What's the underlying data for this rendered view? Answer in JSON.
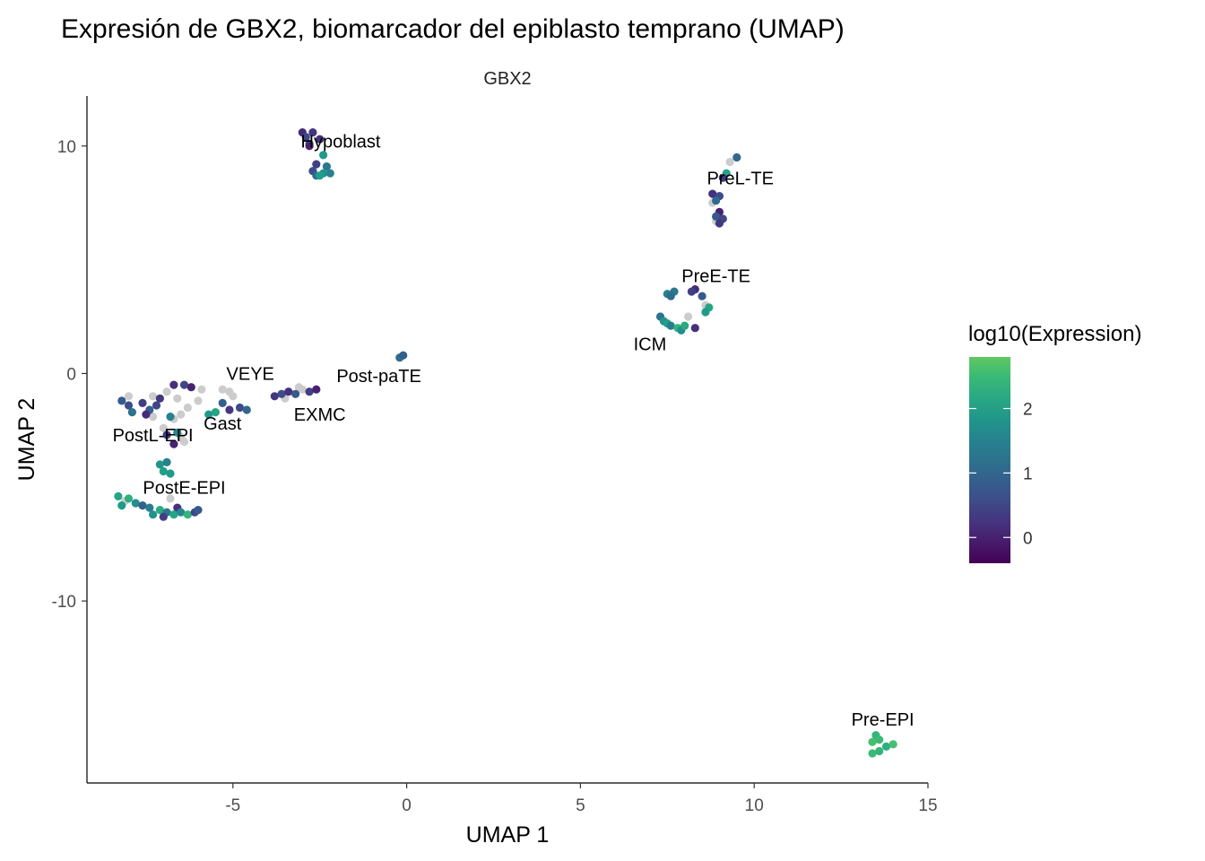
{
  "chart_data": {
    "type": "scatter",
    "title": "Expresión de GBX2, biomarcador del epiblasto temprano (UMAP)",
    "facet_label": "GBX2",
    "xlabel": "UMAP 1",
    "ylabel": "UMAP 2",
    "xlim": [
      -9.2,
      15.0
    ],
    "ylim": [
      -18.0,
      12.2
    ],
    "x_ticks": [
      -5,
      0,
      5,
      10,
      15
    ],
    "y_ticks": [
      -10,
      0,
      10
    ],
    "y_tick_labels": [
      "-10",
      "0",
      "10"
    ],
    "grid": false,
    "na_color": "#cccccc",
    "legend": {
      "title": "log10(Expression)",
      "position": "right",
      "min": -0.4,
      "max": 2.8,
      "ticks": [
        0,
        1,
        2
      ],
      "colormap": "viridis"
    },
    "clusters": [
      {
        "label": "Hypoblast",
        "x": -2.8,
        "y": 10.2,
        "expr_mean": 0.9,
        "expr_spread": 0.8
      },
      {
        "label": "PreL-TE",
        "x": 9.1,
        "y": 8.1,
        "expr_mean": 0.6,
        "expr_spread": 0.6
      },
      {
        "label": "PreE-TE",
        "x": 8.0,
        "y": 3.3,
        "expr_mean": 1.1,
        "expr_spread": 0.8
      },
      {
        "label": "ICM",
        "x": 7.5,
        "y": 2.1,
        "expr_mean": 1.8,
        "expr_spread": 0.5
      },
      {
        "label": "Post-paTE",
        "x": -0.1,
        "y": 0.8,
        "expr_mean": 1.0,
        "expr_spread": 0.2
      },
      {
        "label": "VEYE",
        "x": -5.2,
        "y": -1.1,
        "expr_mean": 0.6,
        "expr_spread": 0.5
      },
      {
        "label": "EXMC",
        "x": -3.2,
        "y": -0.8,
        "expr_mean": 0.4,
        "expr_spread": 0.4
      },
      {
        "label": "Gast",
        "x": -6.0,
        "y": -1.6,
        "expr_mean": 1.3,
        "expr_spread": 0.9
      },
      {
        "label": "PostL-EPI",
        "x": -7.2,
        "y": -1.6,
        "expr_mean": 0.8,
        "expr_spread": 0.9
      },
      {
        "label": "PostE-EPI",
        "x": -7.0,
        "y": -5.7,
        "expr_mean": 1.8,
        "expr_spread": 0.7
      },
      {
        "label": "Pre-EPI",
        "x": 13.6,
        "y": -16.4,
        "expr_mean": 2.5,
        "expr_spread": 0.2
      }
    ],
    "label_positions": [
      {
        "label": "Hypoblast",
        "x": -1.9,
        "y": 10.2
      },
      {
        "label": "PreL-TE",
        "x": 9.6,
        "y": 8.6
      },
      {
        "label": "PreE-TE",
        "x": 8.9,
        "y": 4.3
      },
      {
        "label": "ICM",
        "x": 7.0,
        "y": 1.3
      },
      {
        "label": "Post-paTE",
        "x": -0.8,
        "y": -0.1
      },
      {
        "label": "VEYE",
        "x": -4.5,
        "y": -0.0
      },
      {
        "label": "EXMC",
        "x": -2.5,
        "y": -1.8
      },
      {
        "label": "Gast",
        "x": -5.3,
        "y": -2.2
      },
      {
        "label": "PostL-EPI",
        "x": -7.3,
        "y": -2.7
      },
      {
        "label": "PostE-EPI",
        "x": -6.4,
        "y": -5.0
      },
      {
        "label": "Pre-EPI",
        "x": 13.7,
        "y": -15.2
      }
    ],
    "points": [
      {
        "x": -3.0,
        "y": 10.6,
        "expr": 0.1
      },
      {
        "x": -2.7,
        "y": 10.6,
        "expr": 0.3
      },
      {
        "x": -2.9,
        "y": 10.4,
        "expr": 0.5
      },
      {
        "x": -2.5,
        "y": 10.3,
        "expr": 0.2
      },
      {
        "x": -2.8,
        "y": 10.1,
        "expr": 0.8
      },
      {
        "x": -2.4,
        "y": 9.6,
        "expr": 1.9
      },
      {
        "x": -2.6,
        "y": 9.2,
        "expr": 0.4
      },
      {
        "x": -2.3,
        "y": 9.1,
        "expr": 1.3
      },
      {
        "x": -2.7,
        "y": 8.9,
        "expr": 0.6
      },
      {
        "x": -2.4,
        "y": 8.8,
        "expr": 1.8
      },
      {
        "x": -2.2,
        "y": 8.8,
        "expr": 1.5
      },
      {
        "x": -2.6,
        "y": 8.7,
        "expr": 1.1
      },
      {
        "x": -2.5,
        "y": 8.7,
        "expr": 2.0
      },
      {
        "x": -2.8,
        "y": 10.0,
        "expr": 0.0
      },
      {
        "x": 9.5,
        "y": 9.5,
        "expr": 1.0
      },
      {
        "x": 9.3,
        "y": 9.3,
        "expr": null
      },
      {
        "x": 9.2,
        "y": 8.8,
        "expr": 2.1
      },
      {
        "x": 9.1,
        "y": 8.6,
        "expr": 0.3
      },
      {
        "x": 8.8,
        "y": 7.9,
        "expr": 0.2
      },
      {
        "x": 9.0,
        "y": 7.8,
        "expr": 0.6
      },
      {
        "x": 8.9,
        "y": 7.6,
        "expr": 1.1
      },
      {
        "x": 8.8,
        "y": 7.5,
        "expr": null
      },
      {
        "x": 9.0,
        "y": 7.1,
        "expr": 0.0
      },
      {
        "x": 8.9,
        "y": 6.9,
        "expr": 0.8
      },
      {
        "x": 9.1,
        "y": 6.8,
        "expr": 0.5
      },
      {
        "x": 8.9,
        "y": 6.7,
        "expr": null
      },
      {
        "x": 9.0,
        "y": 6.6,
        "expr": 0.3
      },
      {
        "x": 8.3,
        "y": 3.7,
        "expr": 0.1
      },
      {
        "x": 8.2,
        "y": 3.6,
        "expr": 0.4
      },
      {
        "x": 7.7,
        "y": 3.6,
        "expr": 1.3
      },
      {
        "x": 7.5,
        "y": 3.5,
        "expr": 1.5
      },
      {
        "x": 8.5,
        "y": 3.4,
        "expr": 0.8
      },
      {
        "x": 7.6,
        "y": 3.4,
        "expr": 1.1
      },
      {
        "x": 8.6,
        "y": 3.0,
        "expr": null
      },
      {
        "x": 8.7,
        "y": 2.9,
        "expr": 2.1
      },
      {
        "x": 8.6,
        "y": 2.7,
        "expr": 1.9
      },
      {
        "x": 8.1,
        "y": 2.5,
        "expr": null
      },
      {
        "x": 7.3,
        "y": 2.5,
        "expr": 1.2
      },
      {
        "x": 7.4,
        "y": 2.3,
        "expr": 1.8
      },
      {
        "x": 7.5,
        "y": 2.2,
        "expr": 2.0
      },
      {
        "x": 7.6,
        "y": 2.1,
        "expr": 1.4
      },
      {
        "x": 7.8,
        "y": 2.0,
        "expr": 2.4
      },
      {
        "x": 7.9,
        "y": 1.9,
        "expr": 1.7
      },
      {
        "x": 8.0,
        "y": 2.1,
        "expr": 2.2
      },
      {
        "x": 8.3,
        "y": 2.0,
        "expr": 0.2
      },
      {
        "x": -0.2,
        "y": 0.7,
        "expr": 1.1
      },
      {
        "x": -0.1,
        "y": 0.8,
        "expr": 0.9
      },
      {
        "x": -5.3,
        "y": -0.7,
        "expr": null
      },
      {
        "x": -5.1,
        "y": -0.8,
        "expr": null
      },
      {
        "x": -5.0,
        "y": -1.0,
        "expr": null
      },
      {
        "x": -5.3,
        "y": -1.3,
        "expr": 0.9
      },
      {
        "x": -4.8,
        "y": -1.5,
        "expr": 0.6
      },
      {
        "x": -4.6,
        "y": -1.6,
        "expr": 1.0
      },
      {
        "x": -5.1,
        "y": -1.6,
        "expr": 0.3
      },
      {
        "x": -5.5,
        "y": -1.7,
        "expr": 2.1
      },
      {
        "x": -5.7,
        "y": -1.8,
        "expr": 1.9
      },
      {
        "x": -3.8,
        "y": -1.0,
        "expr": 0.3
      },
      {
        "x": -3.6,
        "y": -0.9,
        "expr": 0.6
      },
      {
        "x": -3.4,
        "y": -0.8,
        "expr": 0.2
      },
      {
        "x": -3.2,
        "y": -0.9,
        "expr": 0.8
      },
      {
        "x": -3.0,
        "y": -0.7,
        "expr": null
      },
      {
        "x": -2.8,
        "y": -0.8,
        "expr": 0.4
      },
      {
        "x": -2.6,
        "y": -0.7,
        "expr": 0.0
      },
      {
        "x": -3.5,
        "y": -1.1,
        "expr": null
      },
      {
        "x": -3.1,
        "y": -0.6,
        "expr": null
      },
      {
        "x": -6.7,
        "y": -0.5,
        "expr": 0.2
      },
      {
        "x": -6.4,
        "y": -0.5,
        "expr": 0.5
      },
      {
        "x": -6.2,
        "y": -0.6,
        "expr": 0.0
      },
      {
        "x": -5.9,
        "y": -0.7,
        "expr": null
      },
      {
        "x": -6.9,
        "y": -0.8,
        "expr": null
      },
      {
        "x": -7.1,
        "y": -1.1,
        "expr": 0.3
      },
      {
        "x": -6.6,
        "y": -1.1,
        "expr": null
      },
      {
        "x": -6.0,
        "y": -1.2,
        "expr": null
      },
      {
        "x": -7.3,
        "y": -1.0,
        "expr": null
      },
      {
        "x": -6.3,
        "y": -1.5,
        "expr": null
      },
      {
        "x": -6.5,
        "y": -1.8,
        "expr": null
      },
      {
        "x": -6.8,
        "y": -1.9,
        "expr": 1.5
      },
      {
        "x": -7.0,
        "y": -2.4,
        "expr": null
      },
      {
        "x": -6.7,
        "y": -2.0,
        "expr": null
      },
      {
        "x": -8.2,
        "y": -1.2,
        "expr": 0.8
      },
      {
        "x": -8.0,
        "y": -1.4,
        "expr": 0.6
      },
      {
        "x": -7.9,
        "y": -1.7,
        "expr": 1.2
      },
      {
        "x": -7.6,
        "y": -1.3,
        "expr": 0.4
      },
      {
        "x": -7.4,
        "y": -1.6,
        "expr": 0.9
      },
      {
        "x": -7.5,
        "y": -1.8,
        "expr": 0.1
      },
      {
        "x": -7.2,
        "y": -1.4,
        "expr": 0.5
      },
      {
        "x": -8.0,
        "y": -1.0,
        "expr": null
      },
      {
        "x": -7.3,
        "y": -1.9,
        "expr": null
      },
      {
        "x": -6.6,
        "y": -2.6,
        "expr": 1.6
      },
      {
        "x": -6.5,
        "y": -2.8,
        "expr": null
      },
      {
        "x": -6.9,
        "y": -2.7,
        "expr": 0.3
      },
      {
        "x": -6.7,
        "y": -3.1,
        "expr": 0.0
      },
      {
        "x": -6.4,
        "y": -3.0,
        "expr": null
      },
      {
        "x": -7.1,
        "y": -4.0,
        "expr": 1.8
      },
      {
        "x": -6.9,
        "y": -3.9,
        "expr": 1.5
      },
      {
        "x": -7.0,
        "y": -4.3,
        "expr": 2.0
      },
      {
        "x": -6.8,
        "y": -4.4,
        "expr": 1.9
      },
      {
        "x": -6.8,
        "y": -5.5,
        "expr": null
      },
      {
        "x": -6.6,
        "y": -5.9,
        "expr": 0.2
      },
      {
        "x": -8.3,
        "y": -5.4,
        "expr": 2.1
      },
      {
        "x": -8.0,
        "y": -5.5,
        "expr": 2.3
      },
      {
        "x": -7.8,
        "y": -5.7,
        "expr": 1.7
      },
      {
        "x": -8.2,
        "y": -5.8,
        "expr": 1.9
      },
      {
        "x": -7.6,
        "y": -5.8,
        "expr": 0.9
      },
      {
        "x": -7.4,
        "y": -5.9,
        "expr": 1.4
      },
      {
        "x": -7.1,
        "y": -6.0,
        "expr": 2.2
      },
      {
        "x": -6.9,
        "y": -6.1,
        "expr": 1.3
      },
      {
        "x": -6.7,
        "y": -6.2,
        "expr": 2.1
      },
      {
        "x": -6.5,
        "y": -6.1,
        "expr": 1.6
      },
      {
        "x": -6.3,
        "y": -6.2,
        "expr": 2.4
      },
      {
        "x": -6.1,
        "y": -6.1,
        "expr": 0.5
      },
      {
        "x": -6.0,
        "y": -6.0,
        "expr": 0.8
      },
      {
        "x": -7.0,
        "y": -6.3,
        "expr": 0.4
      },
      {
        "x": -8.1,
        "y": -5.6,
        "expr": null
      },
      {
        "x": -7.3,
        "y": -6.2,
        "expr": 1.8
      },
      {
        "x": 13.5,
        "y": -15.9,
        "expr": 2.4
      },
      {
        "x": 13.4,
        "y": -16.2,
        "expr": 2.6
      },
      {
        "x": 13.6,
        "y": -16.1,
        "expr": 2.5
      },
      {
        "x": 13.8,
        "y": -16.4,
        "expr": 2.3
      },
      {
        "x": 14.0,
        "y": -16.3,
        "expr": 2.6
      },
      {
        "x": 13.4,
        "y": -16.7,
        "expr": 2.5
      },
      {
        "x": 13.6,
        "y": -16.6,
        "expr": 2.4
      }
    ]
  }
}
